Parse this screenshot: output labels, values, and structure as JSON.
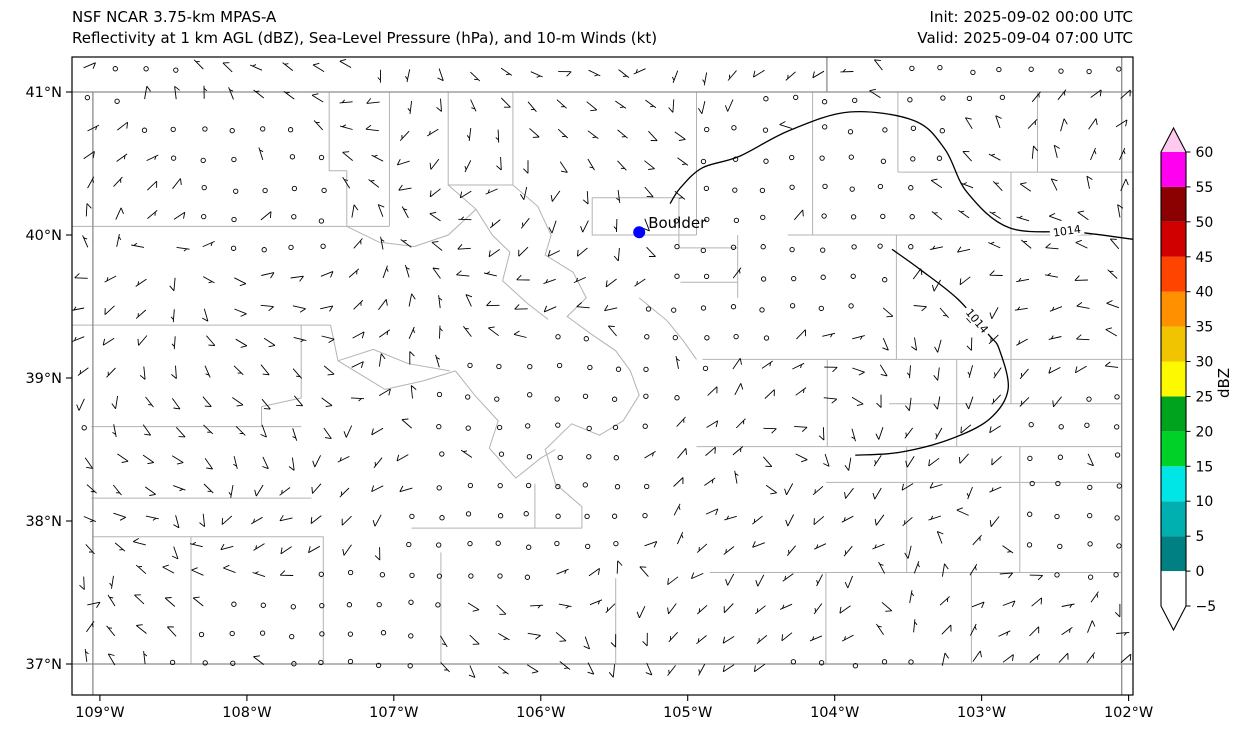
{
  "chart_data": {
    "type": "map",
    "title": "NSF NCAR 3.75-km MPAS-A",
    "subtitle": "Reflectivity at 1 km AGL (dBZ), Sea-Level Pressure (hPa), and 10-m Winds (kt)",
    "init_time": "Init: 2025-09-02 00:00 UTC",
    "valid_time": "Valid: 2025-09-04 07:00 UTC",
    "x_axis": {
      "label": "",
      "range_lon": [
        -109.19,
        -101.97
      ],
      "ticks": [
        {
          "value": -109,
          "label": "109°W"
        },
        {
          "value": -108,
          "label": "108°W"
        },
        {
          "value": -107,
          "label": "107°W"
        },
        {
          "value": -106,
          "label": "106°W"
        },
        {
          "value": -105,
          "label": "105°W"
        },
        {
          "value": -104,
          "label": "104°W"
        },
        {
          "value": -103,
          "label": "103°W"
        },
        {
          "value": -102,
          "label": "102°W"
        }
      ]
    },
    "y_axis": {
      "label": "",
      "range_lat": [
        36.78,
        41.25
      ],
      "ticks": [
        {
          "value": 41,
          "label": "41°N"
        },
        {
          "value": 40,
          "label": "40°N"
        },
        {
          "value": 39,
          "label": "39°N"
        },
        {
          "value": 38,
          "label": "38°N"
        },
        {
          "value": 37,
          "label": "37°N"
        }
      ]
    },
    "colorbar": {
      "label": "dBZ",
      "tick_values": [
        60,
        55,
        50,
        45,
        40,
        35,
        30,
        25,
        20,
        15,
        10,
        5,
        0,
        -5
      ],
      "bands": [
        {
          "range": [
            -5,
            0
          ],
          "color": "#ffffff"
        },
        {
          "range": [
            0,
            5
          ],
          "color": "#008083"
        },
        {
          "range": [
            5,
            10
          ],
          "color": "#00b0b0"
        },
        {
          "range": [
            10,
            15
          ],
          "color": "#00e6e6"
        },
        {
          "range": [
            15,
            20
          ],
          "color": "#00d128"
        },
        {
          "range": [
            20,
            25
          ],
          "color": "#00a31e"
        },
        {
          "range": [
            25,
            30
          ],
          "color": "#fdf900"
        },
        {
          "range": [
            30,
            35
          ],
          "color": "#f0c400"
        },
        {
          "range": [
            35,
            40
          ],
          "color": "#ff9000"
        },
        {
          "range": [
            40,
            45
          ],
          "color": "#ff4400"
        },
        {
          "range": [
            45,
            50
          ],
          "color": "#d00000"
        },
        {
          "range": [
            50,
            55
          ],
          "color": "#8b0000"
        },
        {
          "range": [
            55,
            60
          ],
          "color": "#ff00f0"
        }
      ],
      "over_color": "#ffc9f0",
      "under_color": "#ffffff"
    },
    "pressure_contours": [
      {
        "label": "1014",
        "points_lonlat": [
          [
            -101.97,
            39.97
          ],
          [
            -102.35,
            40.02
          ],
          [
            -102.81,
            40.05
          ],
          [
            -103.1,
            40.3
          ],
          [
            -103.25,
            40.6
          ],
          [
            -103.46,
            40.8
          ],
          [
            -103.9,
            40.86
          ],
          [
            -104.31,
            40.73
          ],
          [
            -104.65,
            40.55
          ],
          [
            -104.9,
            40.47
          ],
          [
            -105.05,
            40.33
          ],
          [
            -105.12,
            40.22
          ]
        ],
        "label_anchor": {
          "lon": -102.42,
          "lat": 40.03,
          "rotation_deg": -8
        }
      },
      {
        "label": "1014",
        "points_lonlat": [
          [
            -103.61,
            39.9
          ],
          [
            -103.42,
            39.76
          ],
          [
            -103.16,
            39.55
          ],
          [
            -102.95,
            39.3
          ],
          [
            -102.88,
            39.2
          ],
          [
            -102.82,
            38.92
          ],
          [
            -102.95,
            38.71
          ],
          [
            -103.22,
            38.57
          ],
          [
            -103.56,
            38.48
          ],
          [
            -103.86,
            38.46
          ]
        ],
        "label_anchor": {
          "lon": -103.03,
          "lat": 39.4,
          "rotation_deg": 50
        }
      }
    ],
    "city_markers": [
      {
        "name": "Boulder",
        "lon": -105.33,
        "lat": 40.02,
        "color": "#0000ff"
      }
    ],
    "wind_barbs": {
      "units": "kt",
      "calm_symbol": "open-circle",
      "speeds_depicted_kt": [
        0,
        5,
        10
      ],
      "grid_spacing_px": 29.5,
      "seed": 7
    },
    "boundaries": {
      "state_color": "#8c8c8c",
      "county_color": "#b3b3b3",
      "state_lines": [
        [
          [
            -109.19,
            41.0
          ],
          [
            -101.97,
            41.0
          ]
        ],
        [
          [
            -109.19,
            37.0
          ],
          [
            -101.97,
            37.0
          ]
        ],
        [
          [
            -109.048,
            41.0
          ],
          [
            -109.048,
            36.783
          ]
        ],
        [
          [
            -102.047,
            41.245
          ],
          [
            -102.047,
            36.783
          ]
        ],
        [
          [
            -104.053,
            41.245
          ],
          [
            -104.053,
            41.0
          ]
        ]
      ],
      "county_lines": [
        [
          [
            -107.44,
            41.0
          ],
          [
            -107.44,
            40.45
          ],
          [
            -107.32,
            40.45
          ],
          [
            -107.32,
            40.06
          ]
        ],
        [
          [
            -107.03,
            41.0
          ],
          [
            -107.03,
            40.06
          ]
        ],
        [
          [
            -106.63,
            41.0
          ],
          [
            -106.63,
            40.35
          ],
          [
            -106.19,
            40.35
          ],
          [
            -106.19,
            41.0
          ]
        ],
        [
          [
            -109.19,
            40.06
          ],
          [
            -107.03,
            40.06
          ]
        ],
        [
          [
            -109.19,
            39.37
          ],
          [
            -107.43,
            39.37
          ]
        ],
        [
          [
            -107.43,
            39.37
          ],
          [
            -107.38,
            39.12
          ],
          [
            -107.06,
            38.92
          ]
        ],
        [
          [
            -109.06,
            38.66
          ],
          [
            -107.63,
            38.66
          ]
        ],
        [
          [
            -107.63,
            39.37
          ],
          [
            -107.63,
            38.86
          ],
          [
            -107.9,
            38.8
          ],
          [
            -107.9,
            38.66
          ]
        ],
        [
          [
            -109.06,
            38.16
          ],
          [
            -107.56,
            38.16
          ]
        ],
        [
          [
            -109.05,
            37.89
          ],
          [
            -107.48,
            37.89
          ]
        ],
        [
          [
            -108.38,
            37.89
          ],
          [
            -108.38,
            37.0
          ]
        ],
        [
          [
            -107.48,
            37.89
          ],
          [
            -107.48,
            37.0
          ]
        ],
        [
          [
            -106.68,
            37.78
          ],
          [
            -106.68,
            37.0
          ]
        ],
        [
          [
            -106.88,
            37.95
          ],
          [
            -105.72,
            37.95
          ]
        ],
        [
          [
            -105.49,
            37.6
          ],
          [
            -105.49,
            37.0
          ]
        ],
        [
          [
            -104.06,
            37.64
          ],
          [
            -104.06,
            37.0
          ]
        ],
        [
          [
            -103.07,
            37.64
          ],
          [
            -103.07,
            37.0
          ]
        ],
        [
          [
            -104.85,
            37.64
          ],
          [
            -102.05,
            37.64
          ]
        ],
        [
          [
            -104.06,
            38.27
          ],
          [
            -102.05,
            38.27
          ]
        ],
        [
          [
            -104.94,
            38.52
          ],
          [
            -102.05,
            38.52
          ]
        ],
        [
          [
            -103.51,
            38.52
          ],
          [
            -103.51,
            37.64
          ]
        ],
        [
          [
            -102.74,
            38.52
          ],
          [
            -102.74,
            37.64
          ]
        ],
        [
          [
            -103.17,
            39.13
          ],
          [
            -103.17,
            38.52
          ]
        ],
        [
          [
            -103.63,
            38.82
          ],
          [
            -102.05,
            38.82
          ]
        ],
        [
          [
            -104.9,
            39.13
          ],
          [
            -101.97,
            39.13
          ]
        ],
        [
          [
            -104.05,
            39.13
          ],
          [
            -104.05,
            38.52
          ]
        ],
        [
          [
            -103.58,
            40.0
          ],
          [
            -103.58,
            39.13
          ]
        ],
        [
          [
            -102.8,
            40.44
          ],
          [
            -102.8,
            38.82
          ]
        ],
        [
          [
            -104.32,
            40.0
          ],
          [
            -102.25,
            40.0
          ]
        ],
        [
          [
            -103.57,
            40.44
          ],
          [
            -101.97,
            40.44
          ]
        ],
        [
          [
            -104.94,
            41.0
          ],
          [
            -104.94,
            40.0
          ]
        ],
        [
          [
            -104.15,
            41.0
          ],
          [
            -104.15,
            40.0
          ]
        ],
        [
          [
            -103.57,
            41.0
          ],
          [
            -103.57,
            40.44
          ]
        ],
        [
          [
            -102.62,
            41.0
          ],
          [
            -102.62,
            40.44
          ]
        ],
        [
          [
            -105.06,
            40.26
          ],
          [
            -105.65,
            40.26
          ],
          [
            -105.65,
            40.0
          ],
          [
            -104.94,
            40.0
          ]
        ],
        [
          [
            -105.06,
            40.26
          ],
          [
            -105.06,
            39.91
          ],
          [
            -104.66,
            39.91
          ]
        ],
        [
          [
            -104.66,
            40.0
          ],
          [
            -104.66,
            39.56
          ]
        ],
        [
          [
            -105.05,
            39.67
          ],
          [
            -104.66,
            39.67
          ]
        ],
        [
          [
            -106.19,
            40.35
          ],
          [
            -106.02,
            40.2
          ],
          [
            -105.93,
            40.0
          ],
          [
            -105.97,
            39.86
          ],
          [
            -105.78,
            39.74
          ],
          [
            -105.69,
            39.56
          ],
          [
            -105.82,
            39.43
          ],
          [
            -105.66,
            39.31
          ]
        ],
        [
          [
            -106.63,
            40.35
          ],
          [
            -106.44,
            40.18
          ],
          [
            -106.33,
            40.0
          ],
          [
            -106.21,
            39.88
          ],
          [
            -106.26,
            39.68
          ],
          [
            -106.09,
            39.52
          ],
          [
            -105.95,
            39.41
          ]
        ],
        [
          [
            -105.66,
            39.31
          ],
          [
            -105.49,
            39.19
          ],
          [
            -105.39,
            39.05
          ],
          [
            -105.33,
            38.88
          ],
          [
            -105.44,
            38.7
          ],
          [
            -105.6,
            38.6
          ],
          [
            -105.79,
            38.68
          ],
          [
            -105.97,
            38.5
          ]
        ],
        [
          [
            -106.58,
            39.05
          ],
          [
            -106.45,
            38.88
          ],
          [
            -106.29,
            38.7
          ],
          [
            -106.35,
            38.51
          ],
          [
            -106.17,
            38.3
          ],
          [
            -106.0,
            38.44
          ],
          [
            -105.9,
            38.5
          ]
        ],
        [
          [
            -107.06,
            38.92
          ],
          [
            -106.8,
            38.98
          ],
          [
            -106.58,
            39.05
          ]
        ],
        [
          [
            -105.33,
            39.56
          ],
          [
            -105.14,
            39.4
          ],
          [
            -105.03,
            39.26
          ],
          [
            -104.94,
            39.13
          ]
        ],
        [
          [
            -105.97,
            38.5
          ],
          [
            -105.9,
            38.26
          ],
          [
            -105.72,
            38.1
          ],
          [
            -105.72,
            37.95
          ]
        ],
        [
          [
            -107.32,
            40.06
          ],
          [
            -107.1,
            39.95
          ],
          [
            -106.86,
            39.92
          ],
          [
            -106.63,
            40.0
          ],
          [
            -106.44,
            40.18
          ]
        ],
        [
          [
            -107.38,
            39.12
          ],
          [
            -107.14,
            39.2
          ],
          [
            -106.9,
            39.1
          ],
          [
            -106.62,
            39.05
          ]
        ],
        [
          [
            -106.04,
            38.26
          ],
          [
            -106.04,
            37.95
          ]
        ]
      ]
    }
  }
}
